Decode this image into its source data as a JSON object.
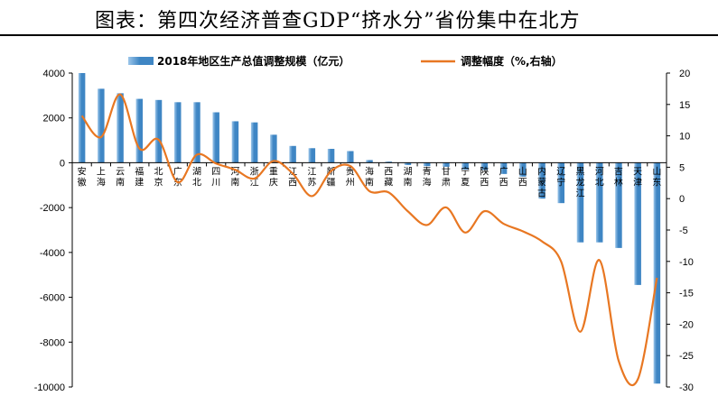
{
  "title": "图表：第四次经济普查GDP“挤水分”省份集中在北方",
  "colors": {
    "bar": "#3f86c4",
    "bar_light": "#9cc6ea",
    "line": "#e87722",
    "axis": "#000000"
  },
  "chart_data": {
    "type": "bar",
    "categories": [
      "安徽",
      "上海",
      "云南",
      "福建",
      "北京",
      "广东",
      "湖北",
      "四川",
      "河南",
      "浙江",
      "重庆",
      "江西",
      "江苏",
      "新疆",
      "贵州",
      "海南",
      "西藏",
      "湖南",
      "青海",
      "甘肃",
      "宁夏",
      "陕西",
      "广西",
      "山西",
      "内蒙古",
      "辽宁",
      "黑龙江",
      "河北",
      "吉林",
      "天津",
      "山东"
    ],
    "series": [
      {
        "name": "2018年地区生产总值调整规模（亿元）",
        "axis": "left",
        "type": "bar",
        "values": [
          4000,
          3300,
          3100,
          2850,
          2800,
          2700,
          2700,
          2250,
          1850,
          1800,
          1250,
          750,
          650,
          620,
          520,
          120,
          50,
          -100,
          -150,
          -180,
          -300,
          -320,
          -500,
          -620,
          -1600,
          -1800,
          -3550,
          -3550,
          -3800,
          -5450,
          -9850
        ]
      },
      {
        "name": "调整幅度（%,右轴）",
        "axis": "right",
        "type": "line",
        "values": [
          13.2,
          9.8,
          16.6,
          8,
          9.4,
          2.6,
          7,
          5.6,
          4.6,
          3.2,
          6,
          4,
          0.4,
          4.4,
          5.2,
          1.2,
          1,
          -2,
          -4.2,
          -1.4,
          -5.4,
          -2,
          -4,
          -5.2,
          -6.8,
          -10,
          -21.2,
          -9.8,
          -25.8,
          -28.8,
          -12.6
        ]
      }
    ],
    "left_axis": {
      "ylim": [
        -10000,
        4000
      ],
      "ticks": [
        "4000",
        "2000",
        "0",
        "-2000",
        "-4000",
        "-6000",
        "-8000",
        "-10000"
      ]
    },
    "right_axis": {
      "ylim": [
        -30,
        20
      ],
      "ticks": [
        "20",
        "15",
        "10",
        "5",
        "0",
        "-5",
        "-10",
        "-15",
        "-20",
        "-25",
        "-30"
      ]
    },
    "legend_position": "top",
    "grid": false
  }
}
